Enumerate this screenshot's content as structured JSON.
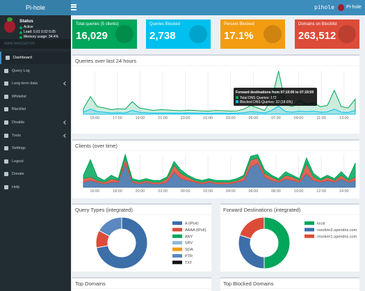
{
  "topbar": {
    "brand": "Pi-hole",
    "user": "pihole"
  },
  "sidebar": {
    "status_title": "Status",
    "status": [
      "Active",
      "Load: 0.01 0.02 0.05",
      "Memory usage: 34.4%"
    ],
    "section": "MAIN NAVIGATION",
    "menu": [
      "Dashboard",
      "Query Log",
      "Long term data",
      "Whitelist",
      "Blacklist",
      "Disable",
      "Tools",
      "Settings",
      "Logout",
      "Donate",
      "Help"
    ]
  },
  "stats": [
    {
      "label": "Total queries (5 clients)",
      "value": "16,029",
      "color": "#00a65a"
    },
    {
      "label": "Queries Blocked",
      "value": "2,738",
      "color": "#00c0ef"
    },
    {
      "label": "Percent Blocked",
      "value": "17.1%",
      "color": "#f39c12"
    },
    {
      "label": "Domains on Blocklist",
      "value": "263,512",
      "color": "#dd4b39"
    }
  ],
  "queries_chart": {
    "type": "line",
    "title": "Queries over last 24 hours",
    "xlabels": [
      "15:00",
      "17:00",
      "19:00",
      "21:00",
      "23:00",
      "01:00",
      "03:00",
      "05:00",
      "07:00",
      "09:00",
      "11:00",
      "13:00"
    ],
    "series": [
      {
        "color": "#00a65a",
        "values": [
          22,
          70,
          30,
          25,
          18,
          22,
          20,
          50,
          25,
          20,
          15,
          18,
          17,
          15,
          14,
          16,
          15,
          13,
          12,
          15,
          14,
          12,
          13,
          20,
          35,
          25,
          15,
          60,
          172,
          40,
          30,
          55,
          40,
          45,
          30,
          35,
          95,
          30,
          25,
          60
        ]
      },
      {
        "color": "#00c0ef",
        "values": [
          8,
          20,
          10,
          8,
          5,
          6,
          5,
          15,
          8,
          6,
          4,
          5,
          5,
          4,
          4,
          5,
          4,
          4,
          3,
          4,
          4,
          3,
          4,
          6,
          10,
          8,
          5,
          15,
          32,
          10,
          8,
          12,
          10,
          12,
          8,
          9,
          20,
          8,
          7,
          15
        ]
      }
    ],
    "tooltip": {
      "title": "Forward destinations from 07:10:00 to 07:19:59",
      "lines": [
        "Total DNS Queries: 172",
        "Blocked DNS Queries: 32 (18.6%)"
      ]
    }
  },
  "clients_chart": {
    "type": "area",
    "title": "Clients (over time)",
    "xlabels": [
      "16:00",
      "18:00",
      "20:00",
      "22:00",
      "00:00",
      "02:00",
      "04:00",
      "06:00",
      "08:00",
      "10:00",
      "12:00",
      "14:00"
    ],
    "series": [
      {
        "color": "#3c6ea8",
        "values": [
          3,
          4,
          3,
          2,
          3,
          3,
          14,
          3,
          2,
          3,
          2,
          2,
          3,
          9,
          5,
          4,
          3,
          2,
          3,
          2,
          2,
          2,
          3,
          4,
          12,
          14,
          6,
          4,
          3,
          5,
          4,
          3,
          8,
          4,
          3,
          4,
          3,
          5,
          3,
          4
        ]
      },
      {
        "color": "#dd4b39",
        "values": [
          2,
          2,
          1,
          1,
          2,
          1,
          3,
          1,
          1,
          1,
          1,
          1,
          2,
          4,
          3,
          2,
          1,
          1,
          1,
          1,
          1,
          1,
          1,
          2,
          4,
          3,
          2,
          2,
          1,
          2,
          2,
          1,
          6,
          2,
          1,
          2,
          1,
          2,
          1,
          2
        ]
      },
      {
        "color": "#00a65a",
        "values": [
          2,
          10,
          2,
          1,
          2,
          1,
          2,
          1,
          1,
          1,
          1,
          1,
          1,
          2,
          2,
          1,
          1,
          1,
          1,
          1,
          1,
          1,
          1,
          1,
          2,
          2,
          2,
          1,
          1,
          2,
          1,
          1,
          3,
          2,
          1,
          1,
          1,
          2,
          1,
          8
        ]
      }
    ]
  },
  "query_types": {
    "type": "doughnut",
    "title": "Query Types (integrated)",
    "items": [
      {
        "name": "A (IPv4)",
        "color": "#3c6ea8",
        "value": 72
      },
      {
        "name": "AAAA (IPv6)",
        "color": "#dd4b39",
        "value": 11
      },
      {
        "name": "ANY",
        "color": "#00a65a",
        "value": 0
      },
      {
        "name": "SRV",
        "color": "#8fb9d9",
        "value": 0
      },
      {
        "name": "SOA",
        "color": "#f39c12",
        "value": 0
      },
      {
        "name": "PTR",
        "color": "#5b88c0",
        "value": 17
      },
      {
        "name": "TXT",
        "color": "#111111",
        "value": 0
      }
    ]
  },
  "forward_destinations": {
    "type": "doughnut",
    "title": "Forward Destinations (integrated)",
    "items": [
      {
        "name": "local",
        "color": "#00a65a",
        "value": 50
      },
      {
        "name": "resolver2.opendns.com",
        "color": "#3c6ea8",
        "value": 30
      },
      {
        "name": "resolver1.opendns.com",
        "color": "#dd4b39",
        "value": 20
      }
    ]
  },
  "bottom": [
    "Top Domains",
    "Top Blocked Domains"
  ]
}
